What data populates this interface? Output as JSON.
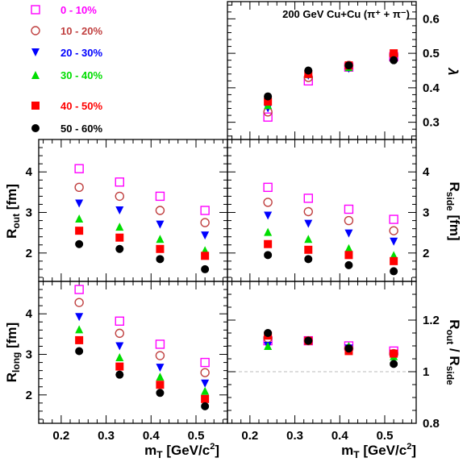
{
  "chart_data": {
    "type": "scatter",
    "title": "200 GeV Cu+Cu (π⁺ + π⁻)",
    "xlabel": "m_T [GeV/c²]",
    "xlim": [
      0.15,
      0.57
    ],
    "x_ticks": [
      "0.2",
      "0.3",
      "0.4",
      "0.5"
    ],
    "x": [
      0.24,
      0.33,
      0.42,
      0.52
    ],
    "legend_location": "top-left",
    "series": [
      {
        "name": "0 - 10%",
        "color": "#ff00ff",
        "marker": "open-square"
      },
      {
        "name": "10 - 20%",
        "color": "#c04040",
        "marker": "open-circle"
      },
      {
        "name": "20 - 30%",
        "color": "#0000ff",
        "marker": "filled-triangle-down"
      },
      {
        "name": "30 - 40%",
        "color": "#00dd00",
        "marker": "filled-triangle-up"
      },
      {
        "name": "40 - 50%",
        "color": "#ff0000",
        "marker": "filled-square"
      },
      {
        "name": "50 - 60%",
        "color": "#000000",
        "marker": "filled-circle"
      }
    ],
    "panels": [
      {
        "id": "lambda",
        "ylabel": "λ",
        "ylim": [
          0.25,
          0.65
        ],
        "y_ticks": [
          "0.3",
          "0.4",
          "0.5",
          "0.6"
        ],
        "reference_line": null,
        "values": [
          [
            0.315,
            0.42,
            0.46,
            0.49
          ],
          [
            0.33,
            0.43,
            0.465,
            0.495
          ],
          [
            0.34,
            0.435,
            0.455,
            0.485
          ],
          [
            0.35,
            0.44,
            0.46,
            0.49
          ],
          [
            0.36,
            0.44,
            0.465,
            0.5
          ],
          [
            0.375,
            0.45,
            0.465,
            0.48
          ]
        ]
      },
      {
        "id": "rout",
        "ylabel": "R_out [fm]",
        "ylim": [
          1.3,
          4.8
        ],
        "y_ticks": [
          "2",
          "3",
          "4"
        ],
        "reference_line": null,
        "values": [
          [
            4.08,
            3.75,
            3.4,
            3.05
          ],
          [
            3.62,
            3.4,
            3.05,
            2.75
          ],
          [
            3.22,
            3.05,
            2.7,
            2.43
          ],
          [
            2.85,
            2.65,
            2.35,
            2.07
          ],
          [
            2.55,
            2.38,
            2.1,
            1.93
          ],
          [
            2.22,
            2.1,
            1.85,
            1.6
          ]
        ]
      },
      {
        "id": "rside",
        "ylabel": "R_side [fm]",
        "ylim": [
          1.3,
          4.8
        ],
        "y_ticks": [
          "2",
          "3",
          "4"
        ],
        "reference_line": null,
        "values": [
          [
            3.62,
            3.35,
            3.08,
            2.83
          ],
          [
            3.25,
            3.02,
            2.8,
            2.55
          ],
          [
            2.92,
            2.72,
            2.48,
            2.28
          ],
          [
            2.52,
            2.35,
            2.12,
            1.95
          ],
          [
            2.22,
            2.08,
            1.95,
            1.8
          ],
          [
            1.95,
            1.85,
            1.7,
            1.55
          ]
        ]
      },
      {
        "id": "rlong",
        "ylabel": "R_long [fm]",
        "ylim": [
          1.3,
          4.8
        ],
        "y_ticks": [
          "2",
          "3",
          "4"
        ],
        "reference_line": null,
        "values": [
          [
            4.6,
            3.82,
            3.25,
            2.8
          ],
          [
            4.28,
            3.52,
            2.97,
            2.55
          ],
          [
            3.92,
            3.2,
            2.67,
            2.28
          ],
          [
            3.62,
            2.93,
            2.45,
            2.1
          ],
          [
            3.35,
            2.7,
            2.25,
            1.9
          ],
          [
            3.08,
            2.5,
            2.05,
            1.72
          ]
        ]
      },
      {
        "id": "ratio",
        "ylabel": "R_out / R_side",
        "ylim": [
          0.8,
          1.35
        ],
        "y_ticks": [
          "0.8",
          "1",
          "1.2"
        ],
        "reference_line": 1,
        "values": [
          [
            1.12,
            1.12,
            1.1,
            1.08
          ],
          [
            1.13,
            1.12,
            1.09,
            1.07
          ],
          [
            1.1,
            1.12,
            1.09,
            1.06
          ],
          [
            1.1,
            1.12,
            1.1,
            1.06
          ],
          [
            1.14,
            1.12,
            1.08,
            1.07
          ],
          [
            1.15,
            1.12,
            1.09,
            1.03
          ]
        ]
      }
    ]
  }
}
